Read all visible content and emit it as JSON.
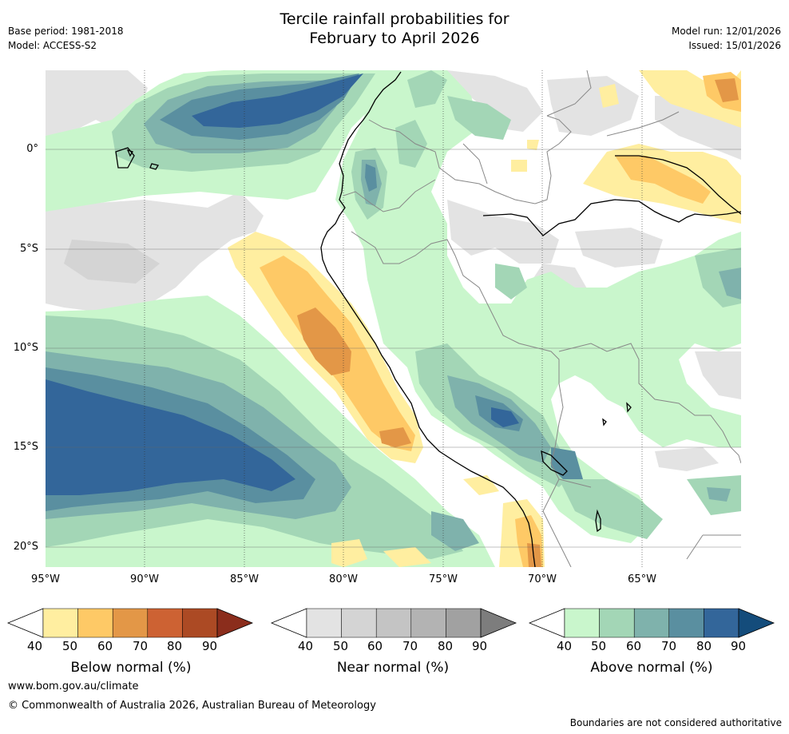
{
  "title_line1": "Tercile rainfall probabilities for",
  "title_line2": "February to April 2026",
  "base_period": "Base period: 1981-2018",
  "model": "Model: ACCESS-S2",
  "model_run": "Model run: 12/01/2026",
  "issued": "Issued: 15/01/2026",
  "lat_labels": [
    "0°",
    "5°S",
    "10°S",
    "15°S",
    "20°S"
  ],
  "lon_labels": [
    "95°W",
    "90°W",
    "85°W",
    "80°W",
    "75°W",
    "70°W",
    "65°W"
  ],
  "colorbars": [
    {
      "title": "Below normal (%)",
      "ticks": [
        "40",
        "50",
        "60",
        "70",
        "80",
        "90"
      ],
      "colors": [
        "#ffeea0",
        "#fec966",
        "#e39747",
        "#cd6233",
        "#ac4a24",
        "#8b2d1c"
      ]
    },
    {
      "title": "Near normal (%)",
      "ticks": [
        "40",
        "50",
        "60",
        "70",
        "80",
        "90"
      ],
      "colors": [
        "#e3e3e3",
        "#d4d4d4",
        "#c4c4c4",
        "#b3b3b3",
        "#a1a1a1",
        "#7d7d7d"
      ]
    },
    {
      "title": "Above normal (%)",
      "ticks": [
        "40",
        "50",
        "60",
        "70",
        "80",
        "90"
      ],
      "colors": [
        "#c9f6cc",
        "#a3d6b6",
        "#7fb2ac",
        "#5a8fa0",
        "#33669a",
        "#144c7b"
      ]
    }
  ],
  "website": "www.bom.gov.au/climate",
  "copyright": "© Commonwealth of Australia 2026, Australian Bureau of Meteorology",
  "boundary_note": "Boundaries are not considered authoritative"
}
